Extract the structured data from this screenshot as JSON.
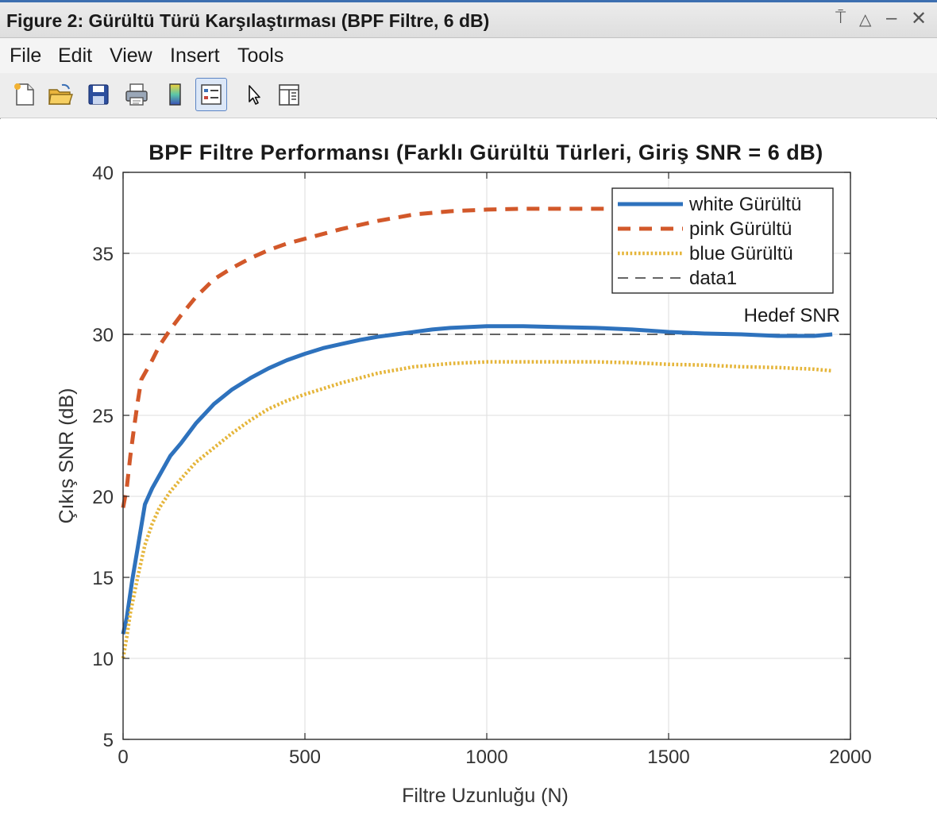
{
  "window": {
    "title": "Figure 2: Gürültü Türü Karşılaştırması (BPF Filtre, 6 dB)",
    "controls": {
      "pin": "⍑",
      "restore": "△",
      "minimize": "–",
      "close": "✕"
    }
  },
  "menu": {
    "items": [
      {
        "label": "File"
      },
      {
        "label": "Edit"
      },
      {
        "label": "View"
      },
      {
        "label": "Insert"
      },
      {
        "label": "Tools"
      }
    ]
  },
  "toolbar": {
    "buttons": [
      {
        "icon": "new-figure-icon"
      },
      {
        "icon": "open-file-icon"
      },
      {
        "icon": "save-icon"
      },
      {
        "icon": "print-icon"
      },
      {
        "icon": "colorbar-icon"
      },
      {
        "icon": "legend-icon",
        "active": true
      },
      {
        "icon": "pointer-icon"
      },
      {
        "icon": "property-editor-icon"
      }
    ]
  },
  "colors": {
    "white": "#2e72bd",
    "pink": "#d2582a",
    "blue": "#e5b53a",
    "reference": "#333333",
    "grid": "#e3e3e3"
  },
  "chart_data": {
    "type": "line",
    "title": "BPF Filtre Performansı (Farklı Gürültü Türleri, Giriş SNR = 6 dB)",
    "xlabel": "Filtre Uzunluğu (N)",
    "ylabel": "Çıkış SNR (dB)",
    "xlim": [
      0,
      2000
    ],
    "ylim": [
      5,
      40
    ],
    "xticks": [
      0,
      500,
      1000,
      1500,
      2000
    ],
    "yticks": [
      5,
      10,
      15,
      20,
      25,
      30,
      35,
      40
    ],
    "grid": true,
    "legend_position": "top-right",
    "annotation": {
      "text": "Hedef SNR",
      "x": 1970,
      "y": 30
    },
    "series": [
      {
        "name": "white Gürültü",
        "style": "solid",
        "x": [
          0,
          10,
          25,
          40,
          60,
          80,
          100,
          130,
          160,
          200,
          250,
          300,
          350,
          400,
          450,
          500,
          550,
          600,
          650,
          700,
          750,
          800,
          850,
          900,
          1000,
          1100,
          1200,
          1300,
          1400,
          1500,
          1600,
          1700,
          1800,
          1900,
          1950
        ],
        "y": [
          11.5,
          12.5,
          14.8,
          16.8,
          19.5,
          20.5,
          21.3,
          22.5,
          23.3,
          24.5,
          25.7,
          26.6,
          27.3,
          27.9,
          28.4,
          28.8,
          29.15,
          29.4,
          29.65,
          29.85,
          30.0,
          30.15,
          30.3,
          30.4,
          30.5,
          30.5,
          30.45,
          30.4,
          30.3,
          30.15,
          30.05,
          30.0,
          29.9,
          29.9,
          30.0
        ]
      },
      {
        "name": "pink Gürültü",
        "style": "dashed",
        "x": [
          0,
          10,
          20,
          30,
          40,
          50,
          60,
          80,
          100,
          130,
          160,
          200,
          250,
          300,
          350,
          400,
          450,
          500,
          600,
          700,
          800,
          900,
          1000,
          1100,
          1200,
          1300,
          1400
        ],
        "y": [
          19.3,
          20.5,
          22.5,
          24.2,
          25.8,
          27.2,
          27.6,
          28.4,
          29.3,
          30.3,
          31.2,
          32.3,
          33.4,
          34.1,
          34.7,
          35.2,
          35.6,
          35.9,
          36.5,
          37.0,
          37.4,
          37.6,
          37.7,
          37.75,
          37.75,
          37.75,
          37.75
        ]
      },
      {
        "name": "blue Gürültü",
        "style": "dotted",
        "x": [
          0,
          10,
          20,
          40,
          60,
          80,
          100,
          130,
          160,
          200,
          250,
          300,
          350,
          400,
          450,
          500,
          600,
          700,
          800,
          900,
          1000,
          1100,
          1200,
          1300,
          1400,
          1500,
          1600,
          1700,
          1800,
          1900,
          1950
        ],
        "y": [
          10.0,
          11.3,
          12.8,
          15.0,
          17.0,
          18.3,
          19.3,
          20.3,
          21.1,
          22.1,
          23.0,
          23.9,
          24.7,
          25.4,
          25.9,
          26.3,
          27.0,
          27.6,
          28.0,
          28.2,
          28.3,
          28.3,
          28.3,
          28.3,
          28.25,
          28.15,
          28.1,
          28.0,
          27.95,
          27.85,
          27.75
        ]
      },
      {
        "name": "data1",
        "style": "reference-dash",
        "x": [
          0,
          2000
        ],
        "y": [
          30,
          30
        ]
      }
    ]
  }
}
